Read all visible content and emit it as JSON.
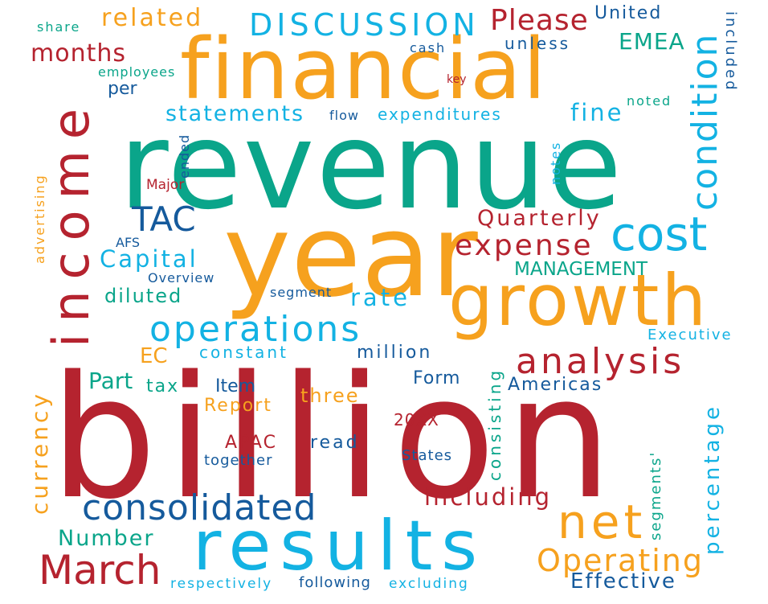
{
  "palette": {
    "crimson": "#b5232f",
    "teal": "#0aa58a",
    "orange": "#f6a11e",
    "cyan": "#13b2e3",
    "navy": "#155a9c"
  },
  "words": {
    "billion": "billion",
    "revenue": "revenue",
    "year": "year",
    "financial": "financial",
    "income": "income",
    "growth": "growth",
    "results": "results",
    "consolidated": "consolidated",
    "operations": "operations",
    "analysis": "analysis",
    "cost": "cost",
    "condition": "condition",
    "net": "net",
    "march": "March",
    "operating": "Operating",
    "discussion": "DISCUSSION",
    "please": "Please",
    "months": "months",
    "related": "related",
    "statements": "statements",
    "expense": "expense",
    "currency": "currency",
    "including": "including",
    "capital": "Capital",
    "tac": "TAC",
    "emea": "EMEA",
    "quarterly": "Quarterly",
    "percentage": "percentage",
    "fine": "fine",
    "rate": "rate",
    "management": "MANAGEMENT",
    "diluted": "diluted",
    "expenditures": "expenditures",
    "effective": "Effective",
    "number": "Number",
    "three": "three",
    "item": "Item",
    "part": "Part",
    "united": "United",
    "unless": "unless",
    "included": "included",
    "noted": "noted",
    "share": "share",
    "cash": "cash",
    "employees": "employees",
    "per": "per",
    "key": "key",
    "flow": "flow",
    "notes": "notes",
    "ended": "ended",
    "major": "Major",
    "advertising": "advertising",
    "afs": "AFS",
    "overview": "Overview",
    "segment": "segment",
    "executive": "Executive",
    "ec": "EC",
    "constant": "constant",
    "million": "million",
    "form": "Form",
    "americas": "Americas",
    "tax": "tax",
    "report": "Report",
    "year_code": "20XX",
    "apac": "APAC",
    "read": "read",
    "together": "together",
    "states": "States",
    "consisting": "consisting",
    "segments": "segments'",
    "respectively": "respectively",
    "following": "following",
    "excluding": "excluding"
  }
}
